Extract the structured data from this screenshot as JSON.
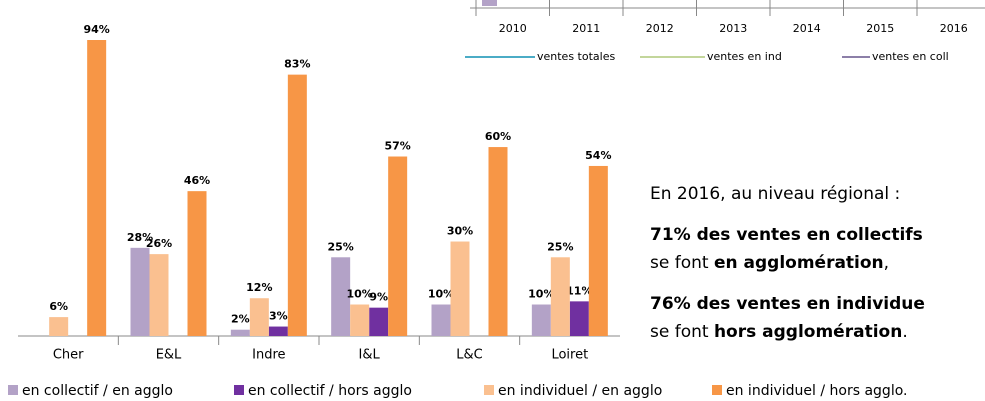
{
  "chart_data": {
    "type": "bar",
    "categories": [
      "Cher",
      "E&L",
      "Indre",
      "I&L",
      "L&C",
      "Loiret"
    ],
    "series": [
      {
        "name": "en collectif / en agglo",
        "color": "#b3a2c7",
        "values": [
          null,
          28,
          2,
          25,
          10,
          10
        ],
        "value_labels": [
          null,
          "28%",
          "2%",
          "25%",
          "10%",
          "10%"
        ]
      },
      {
        "name": "en collectif / hors agglo",
        "color": "#7030a0",
        "values": [
          null,
          null,
          3,
          9,
          null,
          11
        ],
        "value_labels": [
          null,
          null,
          "3%",
          "9%",
          null,
          "11%"
        ]
      },
      {
        "name": "en individuel / en agglo",
        "color": "#fac090",
        "values": [
          6,
          26,
          12,
          10,
          30,
          25
        ],
        "value_labels": [
          "6%",
          "26%",
          "12%",
          "10%",
          "30%",
          "25%"
        ]
      },
      {
        "name": "en individuel / hors agglo.",
        "color": "#f79646",
        "values": [
          94,
          46,
          83,
          57,
          60,
          54
        ],
        "value_labels": [
          "94%",
          "46%",
          "83%",
          "57%",
          "60%",
          "54%"
        ]
      }
    ]
  },
  "inset": {
    "categories": [
      "2010",
      "2011",
      "2012",
      "2013",
      "2014",
      "2015",
      "2016"
    ],
    "legend": [
      {
        "name": "ventes totales",
        "color": "#4bacc6"
      },
      {
        "name": "ventes en ind",
        "color": "#c3d69b"
      },
      {
        "name": "ventes en coll",
        "color": "#8c7fa8"
      }
    ]
  },
  "text": {
    "intro": "En 2016, au niveau régional :",
    "paragraphs": [
      [
        {
          "text": "71% des ventes en collectifs",
          "bold": true
        }
      ],
      [
        {
          "text": "se font ",
          "bold": false
        },
        {
          "text": "en agglomération",
          "bold": true
        },
        {
          "text": ",",
          "bold": false
        }
      ],
      [
        {
          "text": "76% des ventes en individue",
          "bold": true
        }
      ],
      [
        {
          "text": "se font ",
          "bold": false
        },
        {
          "text": "hors agglomération",
          "bold": true
        },
        {
          "text": ".",
          "bold": false
        }
      ]
    ]
  }
}
